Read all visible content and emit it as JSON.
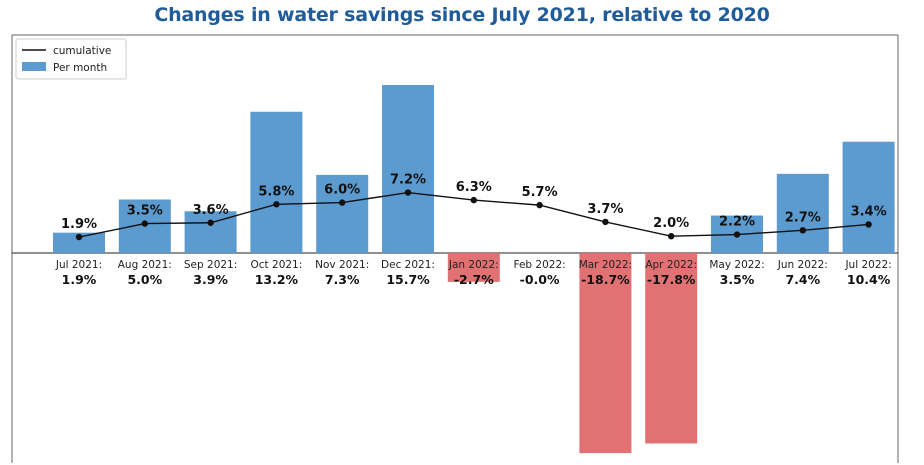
{
  "chart_data": {
    "type": "bar",
    "title": "Changes in water savings since July 2021, relative to 2020",
    "categories": [
      "Jul 2021:",
      "Aug 2021:",
      "Sep 2021:",
      "Oct 2021:",
      "Nov 2021:",
      "Dec 2021:",
      "Jan 2022:",
      "Feb 2022:",
      "Mar 2022:",
      "Apr 2022:",
      "May 2022:",
      "Jun 2022:",
      "Jul 2022:"
    ],
    "series": [
      {
        "name": "Per month",
        "type": "bar",
        "values": [
          1.9,
          5.0,
          3.9,
          13.2,
          7.3,
          15.7,
          -2.7,
          -0.0,
          -18.7,
          -17.8,
          3.5,
          7.4,
          10.4
        ],
        "labels": [
          "1.9%",
          "5.0%",
          "3.9%",
          "13.2%",
          "7.3%",
          "15.7%",
          "-2.7%",
          "-0.0%",
          "-18.7%",
          "-17.8%",
          "3.5%",
          "7.4%",
          "10.4%"
        ],
        "color_positive": "#5b9bcf",
        "color_negative": "#e0696b"
      },
      {
        "name": "cumulative",
        "type": "line",
        "values": [
          1.9,
          3.5,
          3.6,
          5.8,
          6.0,
          7.2,
          6.3,
          5.7,
          3.7,
          2.0,
          2.2,
          2.7,
          3.4
        ],
        "labels": [
          "1.9%",
          "3.5%",
          "3.6%",
          "5.8%",
          "6.0%",
          "7.2%",
          "6.3%",
          "5.7%",
          "3.7%",
          "2.0%",
          "2.2%",
          "2.7%",
          "3.4%"
        ],
        "color": "#111111"
      }
    ],
    "ylim": [
      -19,
      16
    ],
    "legend": {
      "position": "top-left",
      "entries": [
        "cumulative",
        "Per month"
      ]
    },
    "grid": false
  }
}
